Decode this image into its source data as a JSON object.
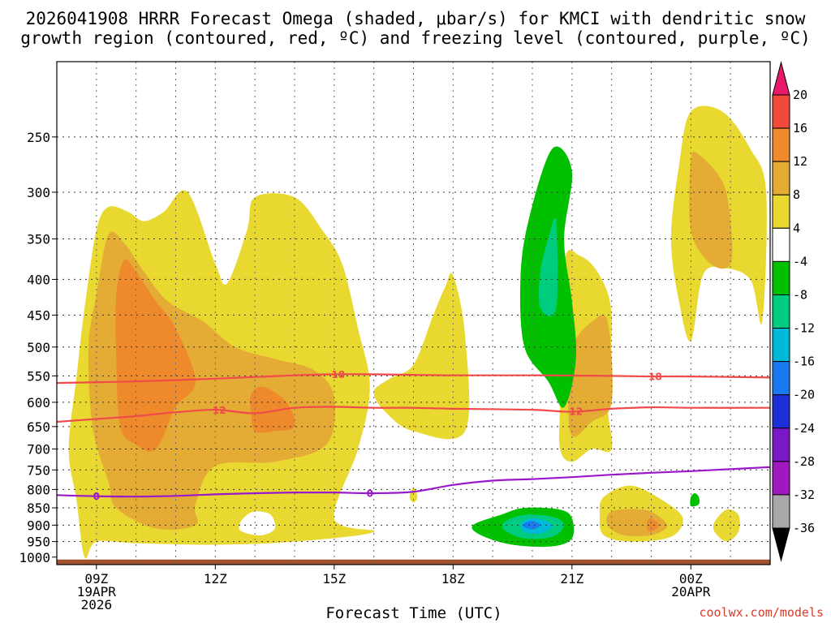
{
  "chart_data": {
    "type": "contour",
    "title_line1": "2026041908 HRRR Forecast Omega (shaded, μbar/s) for KMCI with dendritic snow",
    "title_line2": "growth region (contoured, red, ºC) and freezing level (contoured, purple, ºC)",
    "xlabel": "Forecast Time (UTC)",
    "credit": "coolwx.com/models",
    "x_range_hours": [
      8,
      26
    ],
    "y_range_hpa": [
      1025,
      195
    ],
    "x_ticks": [
      {
        "hour": 9,
        "label": "09Z",
        "date_lines": [
          "19APR",
          "2026"
        ]
      },
      {
        "hour": 12,
        "label": "12Z",
        "date_lines": []
      },
      {
        "hour": 15,
        "label": "15Z",
        "date_lines": []
      },
      {
        "hour": 18,
        "label": "18Z",
        "date_lines": []
      },
      {
        "hour": 21,
        "label": "21Z",
        "date_lines": []
      },
      {
        "hour": 24,
        "label": "00Z",
        "date_lines": [
          "20APR"
        ]
      }
    ],
    "y_ticks": [
      "250",
      "300",
      "350",
      "400",
      "450",
      "500",
      "550",
      "600",
      "650",
      "700",
      "750",
      "800",
      "850",
      "900",
      "950",
      "1000"
    ],
    "colorbar": {
      "labels": [
        "20",
        "16",
        "12",
        "8",
        "4",
        "-4",
        "-8",
        "-12",
        "-16",
        "-20",
        "-24",
        "-28",
        "-32",
        "-36"
      ],
      "colors": [
        "#e8196b",
        "#f24a3a",
        "#ee8a2c",
        "#e5ac35",
        "#e8d830",
        "#ffffff",
        "#00c000",
        "#00cc80",
        "#00b8d8",
        "#1a78f0",
        "#1c30d8",
        "#7a18c8",
        "#a018c0",
        "#a8a8a8",
        "#000000"
      ]
    },
    "omega_fill_colors": {
      "4": "#e8d830",
      "8": "#e5ac35",
      "12": "#ee8a2c",
      "-4": "#00c000",
      "-8": "#00cc80",
      "-12": "#00b8d8",
      "-16": "#1a78f0"
    },
    "omega_regions": [
      {
        "level": 4,
        "points": [
          [
            8.7,
            1000
          ],
          [
            8.5,
            830
          ],
          [
            8.3,
            700
          ],
          [
            8.5,
            550
          ],
          [
            8.7,
            440
          ],
          [
            9.0,
            340
          ],
          [
            9.3,
            315
          ],
          [
            9.8,
            320
          ],
          [
            10.2,
            330
          ],
          [
            10.7,
            320
          ],
          [
            11.3,
            300
          ],
          [
            12.0,
            380
          ],
          [
            12.3,
            405
          ],
          [
            12.8,
            340
          ],
          [
            13.0,
            305
          ],
          [
            14.0,
            305
          ],
          [
            14.7,
            340
          ],
          [
            15.2,
            380
          ],
          [
            15.6,
            470
          ],
          [
            15.9,
            570
          ],
          [
            15.6,
            700
          ],
          [
            15.0,
            880
          ],
          [
            16.0,
            920
          ],
          [
            14.0,
            950
          ],
          [
            12.0,
            960
          ],
          [
            10.0,
            955
          ],
          [
            9.0,
            950
          ]
        ]
      },
      {
        "level": 4,
        "points": [
          [
            16.0,
            580
          ],
          [
            16.4,
            555
          ],
          [
            17.0,
            530
          ],
          [
            17.5,
            450
          ],
          [
            17.8,
            410
          ],
          [
            18.0,
            395
          ],
          [
            18.3,
            480
          ],
          [
            18.3,
            660
          ],
          [
            17.0,
            660
          ],
          [
            16.3,
            620
          ]
        ]
      },
      {
        "level": 4,
        "points": [
          [
            20.8,
            380
          ],
          [
            21.2,
            370
          ],
          [
            21.7,
            395
          ],
          [
            22.0,
            450
          ],
          [
            21.9,
            600
          ],
          [
            22.0,
            700
          ],
          [
            21.5,
            700
          ],
          [
            21.0,
            730
          ],
          [
            20.7,
            700
          ],
          [
            20.7,
            600
          ]
        ]
      },
      {
        "level": 4,
        "points": [
          [
            23.5,
            350
          ],
          [
            23.7,
            275
          ],
          [
            24.0,
            230
          ],
          [
            24.8,
            230
          ],
          [
            25.5,
            260
          ],
          [
            25.9,
            300
          ],
          [
            25.8,
            460
          ],
          [
            25.5,
            400
          ],
          [
            24.8,
            385
          ],
          [
            24.3,
            395
          ],
          [
            24.0,
            490
          ],
          [
            23.7,
            430
          ]
        ]
      },
      {
        "level": 4,
        "points": [
          [
            21.8,
            820
          ],
          [
            22.5,
            790
          ],
          [
            23.3,
            830
          ],
          [
            23.8,
            880
          ],
          [
            23.5,
            935
          ],
          [
            22.5,
            950
          ],
          [
            21.8,
            930
          ],
          [
            21.7,
            870
          ]
        ]
      },
      {
        "level": 4,
        "points": [
          [
            16.9,
            820
          ],
          [
            17.0,
            795
          ],
          [
            17.1,
            820
          ],
          [
            17.0,
            835
          ]
        ]
      },
      {
        "level": 4,
        "points": [
          [
            24.6,
            890
          ],
          [
            24.9,
            855
          ],
          [
            25.2,
            870
          ],
          [
            25.2,
            920
          ],
          [
            24.9,
            950
          ],
          [
            24.6,
            920
          ]
        ]
      },
      {
        "level": 8,
        "points": [
          [
            8.9,
            650
          ],
          [
            8.8,
            500
          ],
          [
            9.0,
            420
          ],
          [
            9.3,
            345
          ],
          [
            9.7,
            355
          ],
          [
            10.2,
            390
          ],
          [
            10.8,
            430
          ],
          [
            11.7,
            460
          ],
          [
            12.5,
            500
          ],
          [
            13.5,
            520
          ],
          [
            14.5,
            540
          ],
          [
            15.0,
            590
          ],
          [
            14.8,
            690
          ],
          [
            13.5,
            730
          ],
          [
            12.0,
            740
          ],
          [
            11.5,
            840
          ],
          [
            11.5,
            900
          ],
          [
            10.5,
            910
          ],
          [
            9.5,
            850
          ],
          [
            9.3,
            780
          ]
        ]
      },
      {
        "level": 8,
        "points": [
          [
            21.0,
            500
          ],
          [
            21.5,
            460
          ],
          [
            21.9,
            460
          ],
          [
            22.0,
            600
          ],
          [
            21.5,
            640
          ],
          [
            21.0,
            670
          ],
          [
            20.9,
            580
          ]
        ]
      },
      {
        "level": 8,
        "points": [
          [
            24.0,
            270
          ],
          [
            24.2,
            265
          ],
          [
            24.8,
            290
          ],
          [
            25.0,
            330
          ],
          [
            25.0,
            380
          ],
          [
            24.5,
            380
          ],
          [
            24.0,
            340
          ]
        ]
      },
      {
        "level": 8,
        "points": [
          [
            22.0,
            860
          ],
          [
            22.8,
            855
          ],
          [
            23.2,
            875
          ],
          [
            23.4,
            905
          ],
          [
            23.0,
            930
          ],
          [
            22.3,
            930
          ],
          [
            21.9,
            900
          ]
        ]
      },
      {
        "level": 12,
        "points": [
          [
            9.6,
            650
          ],
          [
            9.5,
            520
          ],
          [
            9.5,
            420
          ],
          [
            9.7,
            375
          ],
          [
            10.0,
            390
          ],
          [
            10.5,
            430
          ],
          [
            11.0,
            470
          ],
          [
            11.5,
            560
          ],
          [
            11.0,
            610
          ],
          [
            10.5,
            700
          ],
          [
            10.0,
            690
          ]
        ]
      },
      {
        "level": 12,
        "points": [
          [
            12.9,
            585
          ],
          [
            13.2,
            570
          ],
          [
            13.8,
            600
          ],
          [
            14.0,
            650
          ],
          [
            13.5,
            660
          ],
          [
            13.0,
            660
          ],
          [
            12.9,
            620
          ]
        ]
      },
      {
        "level": 12,
        "points": [
          [
            22.9,
            890
          ],
          [
            23.0,
            880
          ],
          [
            23.2,
            900
          ],
          [
            23.0,
            920
          ],
          [
            22.9,
            910
          ]
        ]
      },
      {
        "level": -4,
        "points": [
          [
            19.7,
            400
          ],
          [
            19.9,
            330
          ],
          [
            20.5,
            260
          ],
          [
            21.0,
            280
          ],
          [
            20.8,
            350
          ],
          [
            21.0,
            430
          ],
          [
            21.1,
            520
          ],
          [
            20.8,
            610
          ],
          [
            20.4,
            560
          ],
          [
            19.8,
            500
          ]
        ]
      },
      {
        "level": -4,
        "points": [
          [
            18.5,
            900
          ],
          [
            19.2,
            870
          ],
          [
            19.8,
            850
          ],
          [
            20.7,
            855
          ],
          [
            21.0,
            880
          ],
          [
            21.0,
            940
          ],
          [
            20.5,
            965
          ],
          [
            19.5,
            960
          ],
          [
            18.7,
            930
          ]
        ]
      },
      {
        "level": -4,
        "points": [
          [
            24.0,
            820
          ],
          [
            24.1,
            810
          ],
          [
            24.2,
            820
          ],
          [
            24.2,
            840
          ],
          [
            24.0,
            845
          ]
        ]
      },
      {
        "level": -8,
        "points": [
          [
            20.2,
            390
          ],
          [
            20.4,
            350
          ],
          [
            20.6,
            330
          ],
          [
            20.6,
            440
          ],
          [
            20.2,
            440
          ]
        ]
      },
      {
        "level": -8,
        "points": [
          [
            19.3,
            890
          ],
          [
            19.8,
            870
          ],
          [
            20.5,
            875
          ],
          [
            20.8,
            900
          ],
          [
            20.5,
            935
          ],
          [
            19.8,
            940
          ],
          [
            19.3,
            915
          ]
        ]
      },
      {
        "level": -12,
        "points": [
          [
            19.7,
            895
          ],
          [
            20.0,
            880
          ],
          [
            20.4,
            890
          ],
          [
            20.5,
            905
          ],
          [
            20.2,
            925
          ],
          [
            19.8,
            920
          ]
        ]
      },
      {
        "level": -16,
        "points": [
          [
            19.8,
            895
          ],
          [
            20.0,
            888
          ],
          [
            20.2,
            900
          ],
          [
            20.0,
            912
          ],
          [
            19.8,
            905
          ]
        ]
      }
    ],
    "blank_holes": [
      {
        "points": [
          [
            12.6,
            910
          ],
          [
            12.7,
            880
          ],
          [
            13.0,
            860
          ],
          [
            13.4,
            870
          ],
          [
            13.5,
            910
          ],
          [
            13.2,
            930
          ],
          [
            12.8,
            925
          ]
        ]
      }
    ],
    "ground": {
      "top_hpa": 1008,
      "color": "#a0522d"
    },
    "contours": [
      {
        "name": "-18°C",
        "label": "18",
        "color": "#f04a4a",
        "points": [
          [
            8.0,
            563
          ],
          [
            10.0,
            560
          ],
          [
            12.0,
            555
          ],
          [
            14.0,
            549
          ],
          [
            15.0,
            547
          ],
          [
            16.0,
            547
          ],
          [
            17.0,
            548
          ],
          [
            18.0,
            549
          ],
          [
            20.0,
            549
          ],
          [
            22.0,
            550
          ],
          [
            23.0,
            551
          ],
          [
            24.0,
            551
          ],
          [
            26.0,
            553
          ]
        ],
        "label_positions": [
          15.1,
          23.1
        ]
      },
      {
        "name": "-12°C",
        "label": "12",
        "color": "#f04a4a",
        "points": [
          [
            8.0,
            640
          ],
          [
            9.0,
            634
          ],
          [
            10.0,
            628
          ],
          [
            11.0,
            620
          ],
          [
            12.0,
            615
          ],
          [
            13.0,
            622
          ],
          [
            14.0,
            611
          ],
          [
            15.0,
            609
          ],
          [
            16.0,
            611
          ],
          [
            17.0,
            611
          ],
          [
            18.0,
            613
          ],
          [
            20.0,
            615
          ],
          [
            21.0,
            619
          ],
          [
            22.0,
            613
          ],
          [
            23.0,
            610
          ],
          [
            24.0,
            611
          ],
          [
            26.0,
            611
          ]
        ],
        "label_positions": [
          12.1,
          21.1
        ]
      },
      {
        "name": "0°C",
        "label": "0",
        "color": "#9a18cc",
        "points": [
          [
            8.0,
            815
          ],
          [
            9.0,
            818
          ],
          [
            10.0,
            819
          ],
          [
            11.0,
            817
          ],
          [
            12.0,
            813
          ],
          [
            13.0,
            810
          ],
          [
            14.0,
            808
          ],
          [
            15.0,
            808
          ],
          [
            16.0,
            810
          ],
          [
            17.0,
            806
          ],
          [
            18.0,
            788
          ],
          [
            19.0,
            777
          ],
          [
            20.0,
            773
          ],
          [
            21.0,
            768
          ],
          [
            22.0,
            762
          ],
          [
            23.0,
            757
          ],
          [
            24.0,
            753
          ],
          [
            25.0,
            748
          ],
          [
            26.0,
            743
          ]
        ],
        "label_positions": [
          9.0,
          15.9
        ]
      }
    ]
  }
}
